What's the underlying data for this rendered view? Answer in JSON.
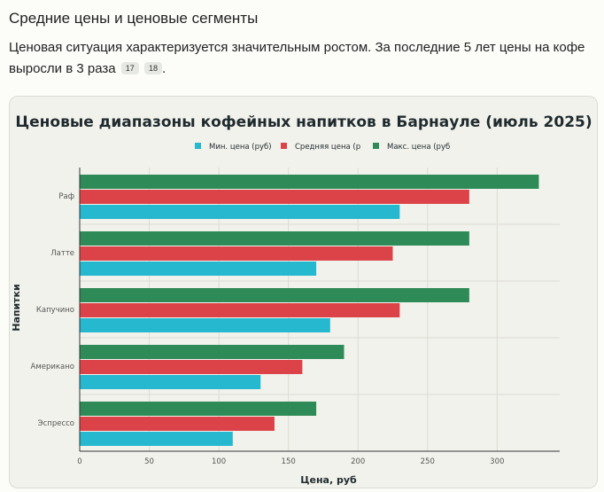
{
  "section": {
    "title": "Средние цены и ценовые сегменты",
    "text": "Ценовая ситуация характеризуется значительным ростом. За последние 5 лет цены на кофе выросли в 3 раза",
    "citations": [
      "17",
      "18"
    ],
    "text_end": "."
  },
  "colors": {
    "min": "#26b8cf",
    "avg": "#dc4348",
    "max": "#2e8b57",
    "grid": "#dcdcd4",
    "text": "#1f2a2e"
  },
  "chart_data": {
    "type": "bar",
    "orientation": "horizontal",
    "title": "Ценовые диапазоны кофейных напитков в Барнауле (июль 2025)",
    "xlabel": "Цена, руб",
    "ylabel": "Напитки",
    "categories": [
      "Раф",
      "Латте",
      "Капучино",
      "Американо",
      "Эспрессо"
    ],
    "series": [
      {
        "name": "Мин. цена (руб)",
        "values": [
          230,
          170,
          180,
          130,
          110
        ]
      },
      {
        "name": "Средняя цена (р",
        "values": [
          280,
          225,
          230,
          160,
          140
        ]
      },
      {
        "name": "Макс. цена (руб",
        "values": [
          330,
          280,
          280,
          190,
          170
        ]
      }
    ],
    "xlim": [
      0,
      345
    ],
    "xticks": [
      0,
      50,
      100,
      150,
      200,
      250,
      300
    ],
    "legend": "top-center",
    "grid": true
  }
}
